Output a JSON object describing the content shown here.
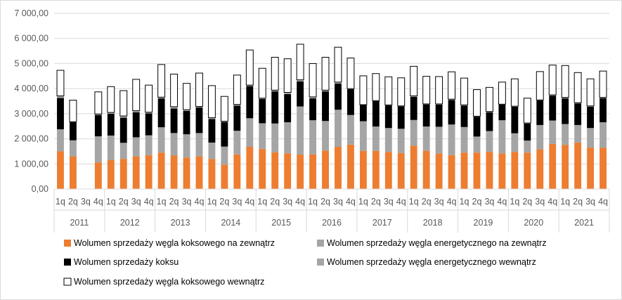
{
  "chart_data": {
    "type": "bar",
    "stacked": true,
    "title": "",
    "xlabel": "",
    "ylabel": "",
    "ylim": [
      0,
      7000
    ],
    "y_ticks": [
      "0,00",
      "1 000,00",
      "2 000,00",
      "3 000,00",
      "4 000,00",
      "5 000,00",
      "6 000,00",
      "7 000,00"
    ],
    "grid": true,
    "legend_position": "bottom",
    "quarters": [
      "1q",
      "2q",
      "3q",
      "4q"
    ],
    "years": [
      "2011",
      "2012",
      "2013",
      "2014",
      "2015",
      "2016",
      "2017",
      "2018",
      "2019",
      "2020",
      "2021"
    ],
    "series": [
      {
        "name": "Wolumen sprzedaży węgla koksowego na zewnątrz",
        "color": "#ed7d31",
        "values": [
          1500,
          1300,
          0,
          1060,
          1150,
          1200,
          1300,
          1350,
          1450,
          1330,
          1250,
          1300,
          1200,
          970,
          1380,
          1680,
          1600,
          1460,
          1420,
          1370,
          1380,
          1530,
          1680,
          1770,
          1520,
          1520,
          1480,
          1430,
          1720,
          1520,
          1420,
          1350,
          1450,
          1450,
          1480,
          1420,
          1480,
          1450,
          1580,
          1790,
          1760,
          1850,
          1650,
          1640
        ]
      },
      {
        "name": "Wolumen sprzedaży węgla energetycznego na zewnątrz",
        "color": "#a5a5a5",
        "values": [
          880,
          640,
          0,
          1040,
          980,
          640,
          760,
          790,
          1010,
          900,
          930,
          930,
          650,
          720,
          940,
          1140,
          1020,
          1150,
          1240,
          1920,
          1360,
          1180,
          1480,
          1180,
          1180,
          970,
          950,
          970,
          1030,
          970,
          1060,
          1220,
          1020,
          640,
          830,
          1320,
          740,
          480,
          970,
          940,
          830,
          700,
          780,
          1020
        ]
      },
      {
        "name": "Wolumen sprzedaży koksu",
        "color": "#000000",
        "values": [
          1250,
          720,
          0,
          850,
          870,
          1000,
          1000,
          870,
          1150,
          980,
          930,
          1020,
          940,
          980,
          1000,
          1280,
          970,
          1280,
          1120,
          1000,
          870,
          1180,
          1040,
          1030,
          650,
          1020,
          900,
          890,
          920,
          880,
          880,
          980,
          850,
          790,
          750,
          620,
          1060,
          680,
          980,
          990,
          1020,
          860,
          850,
          960
        ]
      },
      {
        "name": "Wolumen sprzedaży węgla energetycznego wewnątrz",
        "color": "#a5a5a5",
        "values": [
          80,
          20,
          0,
          40,
          50,
          70,
          60,
          50,
          50,
          70,
          50,
          40,
          50,
          30,
          50,
          40,
          30,
          50,
          70,
          60,
          60,
          50,
          60,
          20,
          10,
          10,
          20,
          20,
          40,
          20,
          30,
          30,
          30,
          20,
          30,
          20,
          20,
          20,
          20,
          30,
          40,
          30,
          30,
          30
        ]
      },
      {
        "name": "Wolumen sprzedaży węgla koksowego wewnątrz",
        "color": "#ffffff",
        "values": [
          1020,
          860,
          0,
          880,
          1030,
          1010,
          1250,
          1080,
          1300,
          1300,
          1050,
          1330,
          1280,
          990,
          1170,
          1400,
          1190,
          1310,
          1340,
          1420,
          1330,
          1310,
          1390,
          1220,
          1150,
          1080,
          1120,
          1120,
          1180,
          1100,
          1090,
          1090,
          1070,
          1060,
          960,
          880,
          1090,
          990,
          1130,
          1190,
          1270,
          1200,
          1080,
          1050
        ]
      }
    ]
  }
}
